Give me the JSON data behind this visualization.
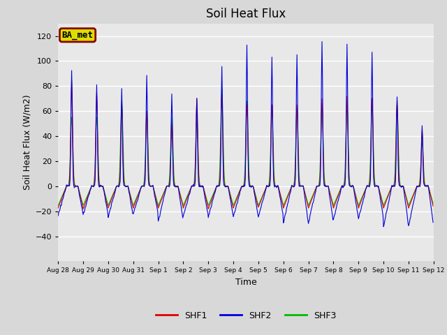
{
  "title": "Soil Heat Flux",
  "xlabel": "Time",
  "ylabel": "Soil Heat Flux (W/m2)",
  "ylim": [
    -60,
    130
  ],
  "yticks": [
    -40,
    -20,
    0,
    20,
    40,
    60,
    80,
    100,
    120
  ],
  "background_color": "#d8d8d8",
  "plot_bg_color": "#e8e8e8",
  "grid_color": "white",
  "line_colors": {
    "SHF1": "#dd0000",
    "SHF2": "#0000dd",
    "SHF3": "#00bb00"
  },
  "legend_label": "BA_met",
  "legend_box_color": "#dddd00",
  "legend_box_edge": "#880000",
  "n_days": 15,
  "points_per_hour": 2,
  "shf1_peaks": [
    85,
    75,
    65,
    60,
    50,
    70,
    73,
    65,
    65,
    65,
    70,
    72,
    70,
    69,
    45
  ],
  "shf2_peaks": [
    92,
    82,
    78,
    89,
    74,
    70,
    95,
    113,
    103,
    105,
    116,
    113,
    107,
    71,
    48
  ],
  "shf3_peaks": [
    55,
    55,
    68,
    60,
    55,
    52,
    78,
    68,
    62,
    63,
    65,
    65,
    65,
    65,
    35
  ],
  "shf1_troughs": [
    -25,
    -26,
    -25,
    -25,
    -25,
    -25,
    -26,
    -25,
    -24,
    -25,
    -25,
    -25,
    -25,
    -25,
    -25
  ],
  "shf2_troughs": [
    -33,
    -33,
    -35,
    -32,
    -40,
    -34,
    -35,
    -35,
    -35,
    -42,
    -42,
    -38,
    -37,
    -46,
    -46
  ],
  "shf3_troughs": [
    -22,
    -22,
    -22,
    -22,
    -22,
    -22,
    -22,
    -22,
    -22,
    -22,
    -22,
    -22,
    -22,
    -22,
    -22
  ],
  "x_tick_labels": [
    "Aug 28",
    "Aug 29",
    "Aug 30",
    "Aug 31",
    "Sep 1",
    "Sep 2",
    "Sep 3",
    "Sep 4",
    "Sep 5",
    "Sep 6",
    "Sep 7",
    "Sep 8",
    "Sep 9",
    "Sep 10",
    "Sep 11",
    "Sep 12"
  ],
  "x_tick_positions": [
    0,
    1,
    2,
    3,
    4,
    5,
    6,
    7,
    8,
    9,
    10,
    11,
    12,
    13,
    14,
    15
  ]
}
